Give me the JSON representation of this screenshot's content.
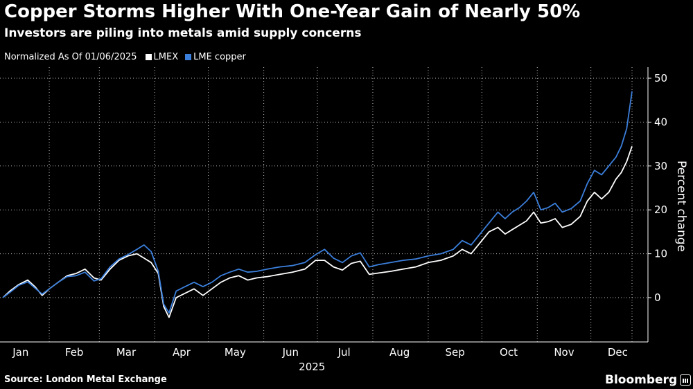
{
  "header": {
    "title": "Copper Storms Higher With One-Year Gain of Nearly 50%",
    "subtitle": "Investors are piling into metals amid supply concerns"
  },
  "legend": {
    "note": "Normalized As Of 01/06/2025",
    "entries": [
      {
        "label": "LMEX",
        "color": "#ffffff"
      },
      {
        "label": "LME copper",
        "color": "#3b7fdc"
      }
    ]
  },
  "footer": {
    "source": "Source: London Metal Exchange",
    "brand": "Bloomberg"
  },
  "colors": {
    "background": "#000000",
    "grid": "#ffffff",
    "lmex": "#ffffff",
    "copper": "#3b7fdc"
  },
  "chart_data": {
    "type": "line",
    "title": "Copper Storms Higher With One-Year Gain of Nearly 50%",
    "ylabel": "Percent change",
    "xlabel": "2025",
    "year_label": "2025",
    "ylim": [
      -10,
      50
    ],
    "yticks": [
      0,
      10,
      20,
      30,
      40,
      50
    ],
    "xlim": [
      "2025-01-06",
      "2025-12-24"
    ],
    "month_ticks": [
      {
        "label": "Jan",
        "date": "2025-01-16"
      },
      {
        "label": "Feb",
        "date": "2025-02-15"
      },
      {
        "label": "Mar",
        "date": "2025-03-16"
      },
      {
        "label": "Apr",
        "date": "2025-04-16"
      },
      {
        "label": "May",
        "date": "2025-05-16"
      },
      {
        "label": "Jun",
        "date": "2025-06-16"
      },
      {
        "label": "Jul",
        "date": "2025-07-16"
      },
      {
        "label": "Aug",
        "date": "2025-08-16"
      },
      {
        "label": "Sep",
        "date": "2025-09-16"
      },
      {
        "label": "Oct",
        "date": "2025-10-16"
      },
      {
        "label": "Nov",
        "date": "2025-11-16"
      },
      {
        "label": "Dec",
        "date": "2025-12-16"
      }
    ],
    "grid_dates": [
      "2025-02-01",
      "2025-03-01",
      "2025-04-01",
      "2025-05-01",
      "2025-06-01",
      "2025-07-01",
      "2025-08-01",
      "2025-09-01",
      "2025-10-01",
      "2025-11-01",
      "2025-12-01",
      "2025-12-24"
    ],
    "grid": true,
    "legend_position": "top-left",
    "series": [
      {
        "name": "LMEX",
        "color": "#ffffff",
        "points": [
          [
            "2025-01-06",
            0
          ],
          [
            "2025-01-10",
            1.5
          ],
          [
            "2025-01-15",
            3
          ],
          [
            "2025-01-20",
            4
          ],
          [
            "2025-01-24",
            2.5
          ],
          [
            "2025-01-28",
            0.5
          ],
          [
            "2025-02-01",
            2
          ],
          [
            "2025-02-06",
            3.5
          ],
          [
            "2025-02-11",
            5
          ],
          [
            "2025-02-16",
            5.5
          ],
          [
            "2025-02-21",
            6.5
          ],
          [
            "2025-02-26",
            4.5
          ],
          [
            "2025-03-02",
            4
          ],
          [
            "2025-03-07",
            6.5
          ],
          [
            "2025-03-12",
            8.5
          ],
          [
            "2025-03-17",
            9.5
          ],
          [
            "2025-03-22",
            10
          ],
          [
            "2025-03-26",
            9
          ],
          [
            "2025-03-30",
            8
          ],
          [
            "2025-04-03",
            5.5
          ],
          [
            "2025-04-06",
            -2
          ],
          [
            "2025-04-09",
            -4.5
          ],
          [
            "2025-04-13",
            0
          ],
          [
            "2025-04-18",
            1
          ],
          [
            "2025-04-23",
            2
          ],
          [
            "2025-04-28",
            0.5
          ],
          [
            "2025-05-03",
            2
          ],
          [
            "2025-05-08",
            3.5
          ],
          [
            "2025-05-13",
            4.5
          ],
          [
            "2025-05-18",
            5
          ],
          [
            "2025-05-23",
            4
          ],
          [
            "2025-05-28",
            4.5
          ],
          [
            "2025-06-03",
            4.8
          ],
          [
            "2025-06-10",
            5.3
          ],
          [
            "2025-06-17",
            5.8
          ],
          [
            "2025-06-24",
            6.5
          ],
          [
            "2025-06-30",
            8.5
          ],
          [
            "2025-07-05",
            8.5
          ],
          [
            "2025-07-10",
            7
          ],
          [
            "2025-07-15",
            6.3
          ],
          [
            "2025-07-20",
            7.8
          ],
          [
            "2025-07-25",
            8.3
          ],
          [
            "2025-07-30",
            5.3
          ],
          [
            "2025-08-04",
            5.6
          ],
          [
            "2025-08-11",
            6
          ],
          [
            "2025-08-18",
            6.5
          ],
          [
            "2025-08-25",
            7
          ],
          [
            "2025-09-01",
            8
          ],
          [
            "2025-09-08",
            8.5
          ],
          [
            "2025-09-15",
            9.5
          ],
          [
            "2025-09-20",
            11
          ],
          [
            "2025-09-25",
            10
          ],
          [
            "2025-09-30",
            12.5
          ],
          [
            "2025-10-05",
            15
          ],
          [
            "2025-10-10",
            16
          ],
          [
            "2025-10-14",
            14.5
          ],
          [
            "2025-10-18",
            15.5
          ],
          [
            "2025-10-22",
            16.5
          ],
          [
            "2025-10-26",
            17.5
          ],
          [
            "2025-10-30",
            19.5
          ],
          [
            "2025-11-03",
            17
          ],
          [
            "2025-11-07",
            17.3
          ],
          [
            "2025-11-11",
            18
          ],
          [
            "2025-11-15",
            16
          ],
          [
            "2025-11-20",
            16.7
          ],
          [
            "2025-11-25",
            18.5
          ],
          [
            "2025-11-29",
            22
          ],
          [
            "2025-12-03",
            24
          ],
          [
            "2025-12-07",
            22.5
          ],
          [
            "2025-12-11",
            24
          ],
          [
            "2025-12-15",
            27
          ],
          [
            "2025-12-18",
            28.5
          ],
          [
            "2025-12-21",
            31
          ],
          [
            "2025-12-24",
            34.5
          ]
        ]
      },
      {
        "name": "LME copper",
        "color": "#3b7fdc",
        "points": [
          [
            "2025-01-06",
            0
          ],
          [
            "2025-01-10",
            1.2
          ],
          [
            "2025-01-15",
            2.8
          ],
          [
            "2025-01-20",
            3.6
          ],
          [
            "2025-01-24",
            2.2
          ],
          [
            "2025-01-28",
            0.8
          ],
          [
            "2025-02-01",
            2
          ],
          [
            "2025-02-06",
            3.5
          ],
          [
            "2025-02-11",
            4.8
          ],
          [
            "2025-02-16",
            5
          ],
          [
            "2025-02-21",
            5.8
          ],
          [
            "2025-02-26",
            3.8
          ],
          [
            "2025-03-02",
            4.3
          ],
          [
            "2025-03-07",
            7
          ],
          [
            "2025-03-12",
            8.8
          ],
          [
            "2025-03-17",
            9.8
          ],
          [
            "2025-03-22",
            11
          ],
          [
            "2025-03-26",
            12
          ],
          [
            "2025-03-30",
            10.5
          ],
          [
            "2025-04-03",
            6
          ],
          [
            "2025-04-06",
            -1.5
          ],
          [
            "2025-04-09",
            -3.5
          ],
          [
            "2025-04-13",
            1.5
          ],
          [
            "2025-04-18",
            2.5
          ],
          [
            "2025-04-23",
            3.5
          ],
          [
            "2025-04-28",
            2.5
          ],
          [
            "2025-05-03",
            3.5
          ],
          [
            "2025-05-08",
            5
          ],
          [
            "2025-05-13",
            5.8
          ],
          [
            "2025-05-18",
            6.5
          ],
          [
            "2025-05-23",
            5.8
          ],
          [
            "2025-05-28",
            6
          ],
          [
            "2025-06-03",
            6.5
          ],
          [
            "2025-06-10",
            7
          ],
          [
            "2025-06-17",
            7.3
          ],
          [
            "2025-06-24",
            8
          ],
          [
            "2025-06-30",
            9.8
          ],
          [
            "2025-07-05",
            11
          ],
          [
            "2025-07-10",
            9
          ],
          [
            "2025-07-15",
            8
          ],
          [
            "2025-07-20",
            9.5
          ],
          [
            "2025-07-25",
            10.2
          ],
          [
            "2025-07-30",
            7
          ],
          [
            "2025-08-04",
            7.5
          ],
          [
            "2025-08-11",
            8
          ],
          [
            "2025-08-18",
            8.5
          ],
          [
            "2025-08-25",
            8.8
          ],
          [
            "2025-09-01",
            9.5
          ],
          [
            "2025-09-08",
            10
          ],
          [
            "2025-09-15",
            11
          ],
          [
            "2025-09-20",
            13
          ],
          [
            "2025-09-25",
            12
          ],
          [
            "2025-09-30",
            14.5
          ],
          [
            "2025-10-05",
            17
          ],
          [
            "2025-10-10",
            19.5
          ],
          [
            "2025-10-14",
            18
          ],
          [
            "2025-10-18",
            19.5
          ],
          [
            "2025-10-22",
            20.5
          ],
          [
            "2025-10-26",
            22
          ],
          [
            "2025-10-30",
            24
          ],
          [
            "2025-11-03",
            20
          ],
          [
            "2025-11-07",
            20.5
          ],
          [
            "2025-11-11",
            21.5
          ],
          [
            "2025-11-15",
            19.5
          ],
          [
            "2025-11-20",
            20.3
          ],
          [
            "2025-11-25",
            22
          ],
          [
            "2025-11-29",
            26
          ],
          [
            "2025-12-03",
            29
          ],
          [
            "2025-12-07",
            28
          ],
          [
            "2025-12-11",
            30
          ],
          [
            "2025-12-15",
            32
          ],
          [
            "2025-12-18",
            34.5
          ],
          [
            "2025-12-21",
            38.5
          ],
          [
            "2025-12-24",
            47
          ]
        ]
      }
    ]
  }
}
